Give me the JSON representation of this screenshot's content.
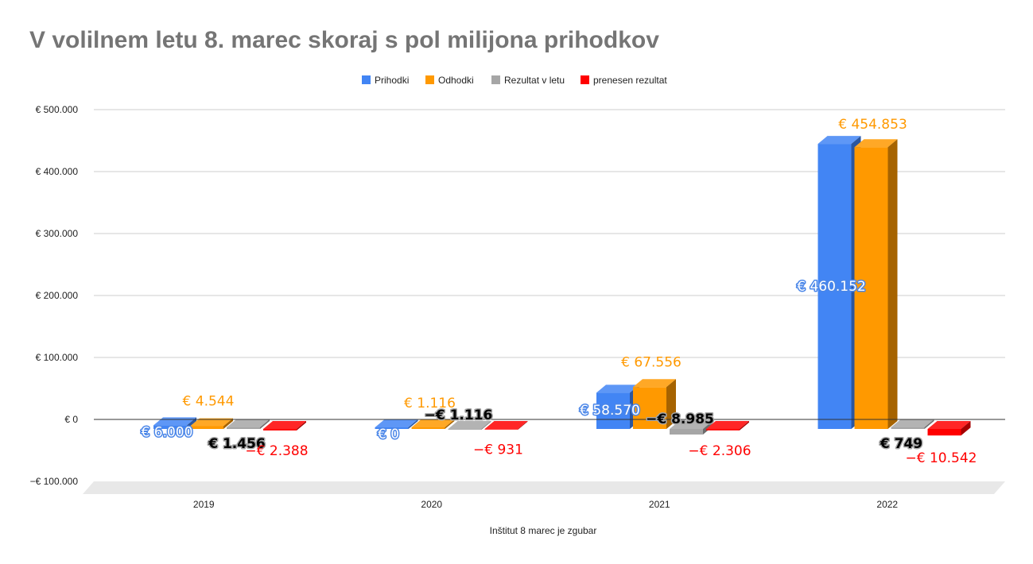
{
  "chart_data": {
    "type": "bar",
    "title": "V volilnem letu 8. marec skoraj s pol milijona prihodkov",
    "xlabel": "Inštitut 8 marec je zgubar",
    "ylabel": "",
    "categories": [
      "2019",
      "2020",
      "2021",
      "2022"
    ],
    "ylim": [
      -100000,
      500000
    ],
    "yticks": [
      -100000,
      0,
      100000,
      200000,
      300000,
      400000,
      500000
    ],
    "ytick_labels": [
      "−€ 100.000",
      "€ 0",
      "€ 100.000",
      "€ 200.000",
      "€ 300.000",
      "€ 400.000",
      "€ 500.000"
    ],
    "grid": true,
    "legend_position": "top",
    "style": "3d",
    "series": [
      {
        "name": "Prihodki",
        "color": "#4285f4",
        "values": [
          6000,
          0,
          58570,
          460152
        ],
        "labels": [
          "€ 6.000",
          "€ 0",
          "€ 58.570",
          "€ 460.152"
        ]
      },
      {
        "name": "Odhodki",
        "color": "#ff9900",
        "values": [
          4544,
          1116,
          67556,
          454853
        ],
        "labels": [
          "€ 4.544",
          "€ 1.116",
          "€ 67.556",
          "€ 454.853"
        ]
      },
      {
        "name": "Rezultat v letu",
        "color": "#a6a6a6",
        "values": [
          1456,
          -1116,
          -8985,
          749
        ],
        "labels": [
          "€ 1.456",
          "−€ 1.116",
          "−€ 8.985",
          "€ 749"
        ]
      },
      {
        "name": "prenesen rezultat",
        "color": "#ff0000",
        "values": [
          -2388,
          -931,
          -2306,
          -10542
        ],
        "labels": [
          "−€ 2.388",
          "−€ 931",
          "−€ 2.306",
          "−€ 10.542"
        ]
      }
    ]
  }
}
